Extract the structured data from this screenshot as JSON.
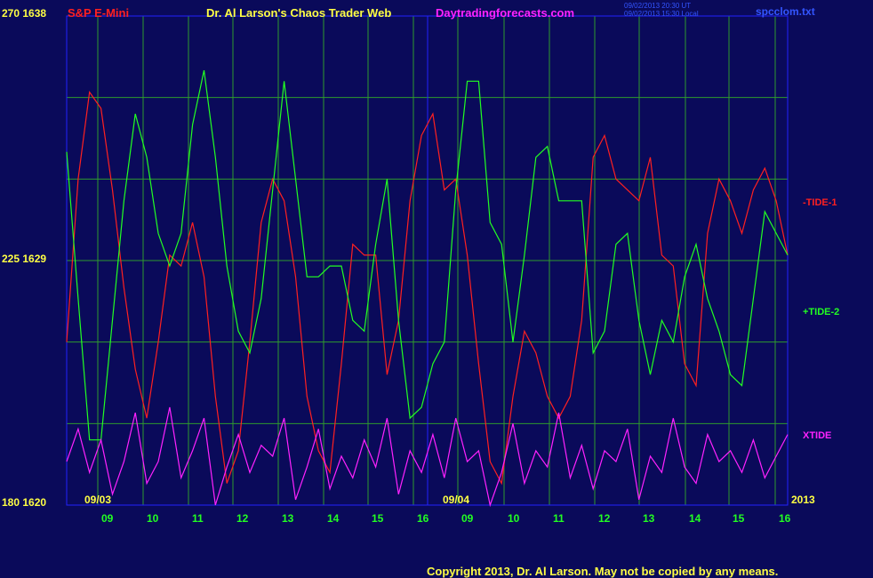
{
  "header": {
    "symbol": "S&P E-Mini",
    "title": "Dr. Al Larson's Chaos Trader Web",
    "site": "Daytradingforecasts.com",
    "timestamp1": "09/02/2013 20:30 UT",
    "timestamp2": "09/02/2013 15:30 Local",
    "file": "spcclom.txt"
  },
  "footer": {
    "copyright": "Copyright 2013, Dr. Al Larson. May not be copied by any means."
  },
  "colors": {
    "background": "#0a0a5a",
    "grid": "#2e9a2e",
    "frame": "#2222ff",
    "tide1": "#ff2020",
    "tide2": "#22ff22",
    "xtide": "#ff22ff",
    "date_text": "#ffff44",
    "hour_text": "#22ff22",
    "header_red": "#ff2020",
    "header_yellow": "#ffff44",
    "header_magenta": "#ff22ff",
    "header_blue": "#3355ff"
  },
  "chart_data": {
    "type": "line",
    "y_axis_labels": [
      {
        "value": 270,
        "price": 1638,
        "text": "270  1638"
      },
      {
        "value": 225,
        "price": 1629,
        "text": "225  1629"
      },
      {
        "value": 180,
        "price": 1620,
        "text": "180  1620"
      }
    ],
    "ylim": [
      180,
      270
    ],
    "date_labels": [
      "09/03",
      "09/04",
      "2013"
    ],
    "hour_labels": [
      "09",
      "10",
      "11",
      "12",
      "13",
      "14",
      "15",
      "16",
      "09",
      "10",
      "11",
      "12",
      "13",
      "14",
      "15",
      "16"
    ],
    "series": [
      {
        "name": "-TIDE-1",
        "color": "#ff2020",
        "y": [
          210,
          240,
          256,
          253,
          238,
          220,
          205,
          196,
          210,
          226,
          224,
          232,
          222,
          200,
          184,
          190,
          210,
          232,
          240,
          236,
          222,
          200,
          190,
          186,
          206,
          228,
          226,
          226,
          204,
          214,
          236,
          248,
          252,
          238,
          240,
          226,
          206,
          188,
          184,
          200,
          212,
          208,
          200,
          196,
          200,
          214,
          244,
          248,
          240,
          238,
          236,
          244,
          226,
          224,
          206,
          202,
          230,
          240,
          236,
          230,
          238,
          242,
          236,
          226
        ]
      },
      {
        "name": "+TIDE-2",
        "color": "#22ff22",
        "y": [
          245,
          218,
          192,
          192,
          214,
          236,
          252,
          244,
          230,
          224,
          230,
          250,
          260,
          244,
          224,
          212,
          208,
          218,
          238,
          258,
          240,
          222,
          222,
          224,
          224,
          214,
          212,
          228,
          240,
          214,
          196,
          198,
          206,
          210,
          238,
          258,
          258,
          232,
          228,
          210,
          226,
          244,
          246,
          236,
          236,
          236,
          208,
          212,
          228,
          230,
          214,
          204,
          214,
          210,
          222,
          228,
          218,
          212,
          204,
          202,
          218,
          234,
          230,
          226
        ]
      },
      {
        "name": "XTIDE",
        "color": "#ff22ff",
        "y": [
          188,
          194,
          186,
          192,
          182,
          188,
          197,
          184,
          188,
          198,
          185,
          190,
          196,
          180,
          187,
          193,
          186,
          191,
          189,
          196,
          181,
          187,
          194,
          183,
          189,
          185,
          192,
          187,
          196,
          182,
          190,
          186,
          193,
          185,
          196,
          188,
          190,
          180,
          186,
          195,
          184,
          190,
          187,
          197,
          185,
          191,
          183,
          190,
          188,
          194,
          181,
          189,
          186,
          196,
          187,
          184,
          193,
          188,
          190,
          186,
          192,
          185,
          189,
          193
        ]
      }
    ],
    "grid": true,
    "legend": "right"
  }
}
